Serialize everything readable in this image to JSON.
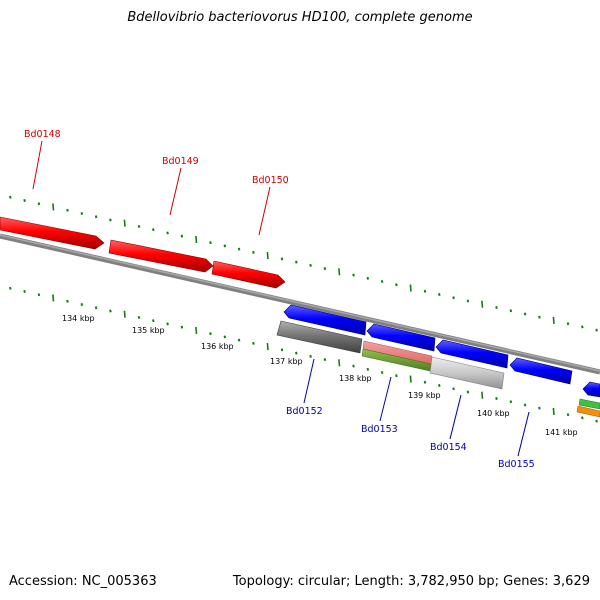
{
  "title": "Bdellovibrio bacteriovorus HD100, complete genome",
  "footer": {
    "accession": "Accession: NC_005363",
    "summary": "Topology: circular; Length: 3,782,950 bp; Genes: 3,629"
  },
  "colors": {
    "forward_gene": "#ff0000",
    "reverse_gene": "#0000ff",
    "backbone": "#808080",
    "tick": "#1a7a1a",
    "forward_label": "#cc0000",
    "reverse_label": "#0000aa"
  },
  "scale_labels": [
    "134 kbp",
    "135 kbp",
    "136 kbp",
    "137 kbp",
    "138 kbp",
    "139 kbp",
    "140 kbp",
    "141 kbp"
  ],
  "forward_genes": [
    {
      "id": "Bd0148"
    },
    {
      "id": "Bd0149"
    },
    {
      "id": "Bd0150"
    }
  ],
  "reverse_genes": [
    {
      "id": "Bd0152"
    },
    {
      "id": "Bd0153"
    },
    {
      "id": "Bd0154"
    },
    {
      "id": "Bd0155"
    }
  ]
}
